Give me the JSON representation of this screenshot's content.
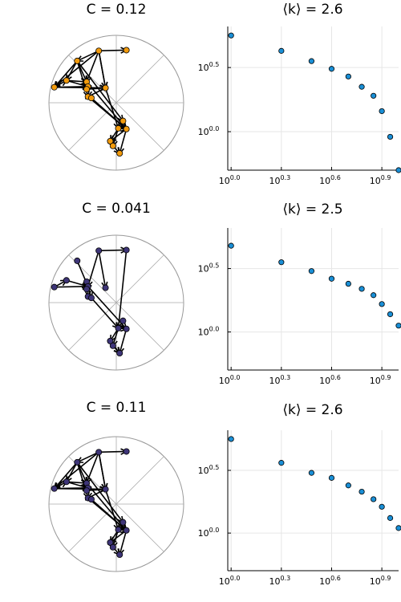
{
  "colors": {
    "orange": "#f19a0c",
    "purple": "#3e3578",
    "point_blue": "#1a8fd6"
  },
  "panels": [
    {
      "network": {
        "title": "C = 0.12",
        "node_color": "#f19a0c",
        "nodes": [
          [
            -0.26,
            0.77
          ],
          [
            0.15,
            0.78
          ],
          [
            -0.58,
            0.62
          ],
          [
            -0.92,
            0.23
          ],
          [
            -0.74,
            0.33
          ],
          [
            -0.44,
            0.31
          ],
          [
            -0.42,
            0.24
          ],
          [
            -0.44,
            0.2
          ],
          [
            -0.16,
            0.22
          ],
          [
            -0.42,
            0.09
          ],
          [
            -0.37,
            0.07
          ],
          [
            0.1,
            -0.27
          ],
          [
            0.03,
            -0.38
          ],
          [
            0.15,
            -0.39
          ],
          [
            -0.09,
            -0.57
          ],
          [
            -0.05,
            -0.64
          ],
          [
            0.05,
            -0.75
          ]
        ],
        "edges": [
          [
            0,
            1
          ],
          [
            0,
            2
          ],
          [
            0,
            3
          ],
          [
            0,
            5
          ],
          [
            0,
            8
          ],
          [
            2,
            3
          ],
          [
            2,
            4
          ],
          [
            2,
            5
          ],
          [
            2,
            9
          ],
          [
            3,
            4
          ],
          [
            3,
            6
          ],
          [
            3,
            8
          ],
          [
            4,
            5
          ],
          [
            4,
            6
          ],
          [
            6,
            7
          ],
          [
            7,
            8
          ],
          [
            8,
            9
          ],
          [
            9,
            10
          ],
          [
            8,
            12
          ],
          [
            9,
            13
          ],
          [
            5,
            13
          ],
          [
            2,
            11
          ],
          [
            11,
            12
          ],
          [
            12,
            13
          ],
          [
            11,
            14
          ],
          [
            13,
            14
          ],
          [
            12,
            15
          ],
          [
            14,
            15
          ],
          [
            15,
            16
          ],
          [
            13,
            16
          ],
          [
            10,
            13
          ],
          [
            0,
            8
          ]
        ]
      },
      "degree": {
        "title": "⟨k⟩ = 2.6",
        "x_ticks": [
          {
            "base": "10",
            "exp": "0.0",
            "value": 0.0
          },
          {
            "base": "10",
            "exp": "0.3",
            "value": 0.3
          },
          {
            "base": "10",
            "exp": "0.6",
            "value": 0.6
          },
          {
            "base": "10",
            "exp": "0.9",
            "value": 0.9
          }
        ],
        "y_ticks": [
          {
            "base": "10",
            "exp": "0.5",
            "value": 0.5
          },
          {
            "base": "10",
            "exp": "0.0",
            "value": 0.0
          }
        ]
      }
    },
    {
      "network": {
        "title": "C = 0.041",
        "node_color": "#3e3578",
        "nodes": [
          [
            -0.26,
            0.77
          ],
          [
            0.15,
            0.78
          ],
          [
            -0.58,
            0.62
          ],
          [
            -0.92,
            0.23
          ],
          [
            -0.74,
            0.33
          ],
          [
            -0.44,
            0.31
          ],
          [
            -0.42,
            0.24
          ],
          [
            -0.44,
            0.2
          ],
          [
            -0.16,
            0.22
          ],
          [
            -0.42,
            0.09
          ],
          [
            -0.37,
            0.07
          ],
          [
            0.1,
            -0.27
          ],
          [
            0.03,
            -0.38
          ],
          [
            0.15,
            -0.39
          ],
          [
            -0.09,
            -0.57
          ],
          [
            -0.05,
            -0.64
          ],
          [
            0.05,
            -0.75
          ]
        ],
        "edges": [
          [
            0,
            1
          ],
          [
            0,
            6
          ],
          [
            0,
            8
          ],
          [
            2,
            6
          ],
          [
            3,
            4
          ],
          [
            3,
            6
          ],
          [
            4,
            6
          ],
          [
            5,
            6
          ],
          [
            6,
            7
          ],
          [
            6,
            9
          ],
          [
            6,
            10
          ],
          [
            1,
            12
          ],
          [
            6,
            13
          ],
          [
            11,
            12
          ],
          [
            12,
            13
          ],
          [
            11,
            14
          ],
          [
            12,
            15
          ],
          [
            14,
            16
          ],
          [
            15,
            16
          ],
          [
            13,
            16
          ],
          [
            10,
            12
          ]
        ]
      },
      "degree": {
        "title": "⟨k⟩ = 2.5",
        "x_ticks": [
          {
            "base": "10",
            "exp": "0.0",
            "value": 0.0
          },
          {
            "base": "10",
            "exp": "0.3",
            "value": 0.3
          },
          {
            "base": "10",
            "exp": "0.6",
            "value": 0.6
          },
          {
            "base": "10",
            "exp": "0.9",
            "value": 0.9
          }
        ],
        "y_ticks": [
          {
            "base": "10",
            "exp": "0.5",
            "value": 0.5
          },
          {
            "base": "10",
            "exp": "0.0",
            "value": 0.0
          }
        ]
      }
    },
    {
      "network": {
        "title": "C = 0.11",
        "node_color": "#3e3578",
        "nodes": [
          [
            -0.26,
            0.77
          ],
          [
            0.15,
            0.78
          ],
          [
            -0.58,
            0.62
          ],
          [
            -0.92,
            0.23
          ],
          [
            -0.74,
            0.33
          ],
          [
            -0.44,
            0.31
          ],
          [
            -0.42,
            0.24
          ],
          [
            -0.44,
            0.2
          ],
          [
            -0.16,
            0.22
          ],
          [
            -0.42,
            0.09
          ],
          [
            -0.37,
            0.07
          ],
          [
            0.1,
            -0.27
          ],
          [
            0.03,
            -0.38
          ],
          [
            0.15,
            -0.39
          ],
          [
            -0.09,
            -0.57
          ],
          [
            -0.05,
            -0.64
          ],
          [
            0.05,
            -0.75
          ]
        ],
        "edges": [
          [
            0,
            1
          ],
          [
            0,
            2
          ],
          [
            0,
            3
          ],
          [
            0,
            5
          ],
          [
            0,
            8
          ],
          [
            2,
            3
          ],
          [
            2,
            4
          ],
          [
            2,
            5
          ],
          [
            2,
            9
          ],
          [
            3,
            4
          ],
          [
            3,
            6
          ],
          [
            3,
            8
          ],
          [
            4,
            5
          ],
          [
            4,
            6
          ],
          [
            6,
            7
          ],
          [
            7,
            8
          ],
          [
            8,
            9
          ],
          [
            9,
            10
          ],
          [
            8,
            12
          ],
          [
            9,
            13
          ],
          [
            5,
            13
          ],
          [
            2,
            11
          ],
          [
            11,
            12
          ],
          [
            12,
            13
          ],
          [
            11,
            14
          ],
          [
            13,
            14
          ],
          [
            12,
            15
          ],
          [
            14,
            15
          ],
          [
            15,
            16
          ],
          [
            13,
            16
          ],
          [
            10,
            13
          ],
          [
            0,
            8
          ]
        ]
      },
      "degree": {
        "title": "⟨k⟩ = 2.6",
        "x_ticks": [
          {
            "base": "10",
            "exp": "0.0",
            "value": 0.0
          },
          {
            "base": "10",
            "exp": "0.3",
            "value": 0.3
          },
          {
            "base": "10",
            "exp": "0.6",
            "value": 0.6
          },
          {
            "base": "10",
            "exp": "0.9",
            "value": 0.9
          }
        ],
        "y_ticks": [
          {
            "base": "10",
            "exp": "0.5",
            "value": 0.5
          },
          {
            "base": "10",
            "exp": "0.0",
            "value": 0.0
          }
        ]
      }
    }
  ],
  "chart_data": [
    {
      "type": "scatter",
      "title": "⟨k⟩ = 2.6",
      "x_scale": "log10",
      "y_scale": "log10",
      "xlim_log10": [
        -0.02,
        1.0
      ],
      "ylim_log10": [
        -0.3,
        0.82
      ],
      "grid": true,
      "series": [
        {
          "x_log10": [
            0.0,
            0.3,
            0.48,
            0.6,
            0.7,
            0.78,
            0.85,
            0.9,
            0.95,
            1.0
          ],
          "y_log10": [
            0.75,
            0.63,
            0.55,
            0.49,
            0.43,
            0.35,
            0.28,
            0.16,
            -0.04,
            -0.3
          ]
        }
      ]
    },
    {
      "type": "scatter",
      "title": "⟨k⟩ = 2.5",
      "x_scale": "log10",
      "y_scale": "log10",
      "xlim_log10": [
        -0.02,
        1.0
      ],
      "ylim_log10": [
        -0.3,
        0.82
      ],
      "grid": true,
      "series": [
        {
          "x_log10": [
            0.0,
            0.3,
            0.48,
            0.6,
            0.7,
            0.78,
            0.85,
            0.9,
            0.95,
            1.0
          ],
          "y_log10": [
            0.68,
            0.55,
            0.48,
            0.42,
            0.38,
            0.34,
            0.29,
            0.22,
            0.14,
            0.05
          ]
        }
      ]
    },
    {
      "type": "scatter",
      "title": "⟨k⟩ = 2.6",
      "x_scale": "log10",
      "y_scale": "log10",
      "xlim_log10": [
        -0.02,
        1.0
      ],
      "ylim_log10": [
        -0.3,
        0.82
      ],
      "grid": true,
      "series": [
        {
          "x_log10": [
            0.0,
            0.3,
            0.48,
            0.6,
            0.7,
            0.78,
            0.85,
            0.9,
            0.95,
            1.0
          ],
          "y_log10": [
            0.75,
            0.56,
            0.48,
            0.44,
            0.38,
            0.33,
            0.27,
            0.21,
            0.12,
            0.04
          ]
        }
      ]
    }
  ]
}
